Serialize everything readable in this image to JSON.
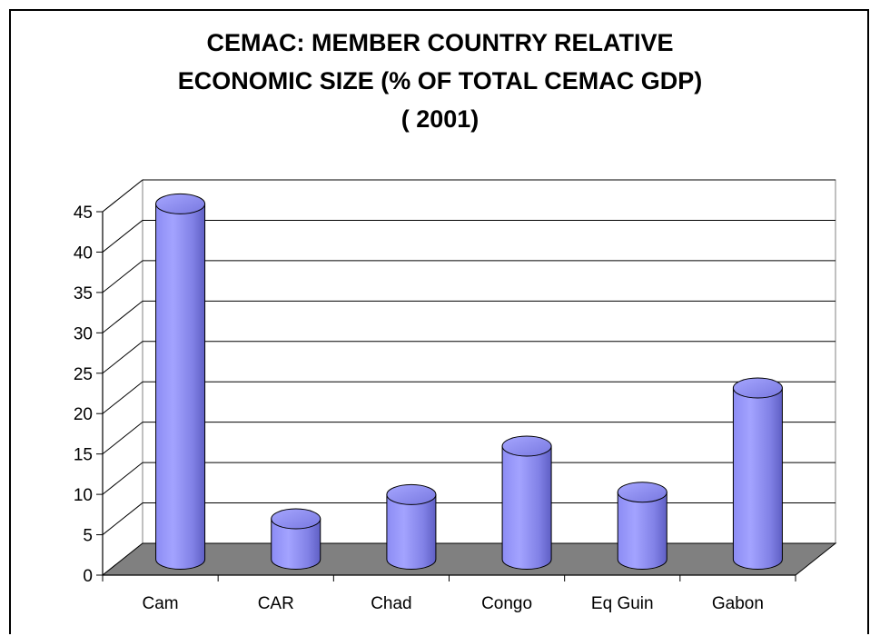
{
  "chart_data": {
    "type": "bar",
    "style": "3d-cylinder",
    "title_lines": [
      "CEMAC: MEMBER COUNTRY RELATIVE",
      "ECONOMIC SIZE (% OF TOTAL CEMAC GDP)",
      "( 2001)"
    ],
    "categories": [
      "Cam",
      "CAR",
      "Chad",
      "Congo",
      "Eq Guin",
      "Gabon"
    ],
    "values": [
      44,
      5,
      8,
      14,
      8.3,
      21.2
    ],
    "ylim": [
      0,
      45
    ],
    "yticks": [
      0,
      5,
      10,
      15,
      20,
      25,
      30,
      35,
      40,
      45
    ],
    "grid": true,
    "legend": "none",
    "colors": {
      "bar_front": "#9999ff",
      "bar_shade": "#6a6ad0",
      "bar_top": "#8a8af5",
      "floor": "#808080",
      "grid": "#000000"
    }
  }
}
